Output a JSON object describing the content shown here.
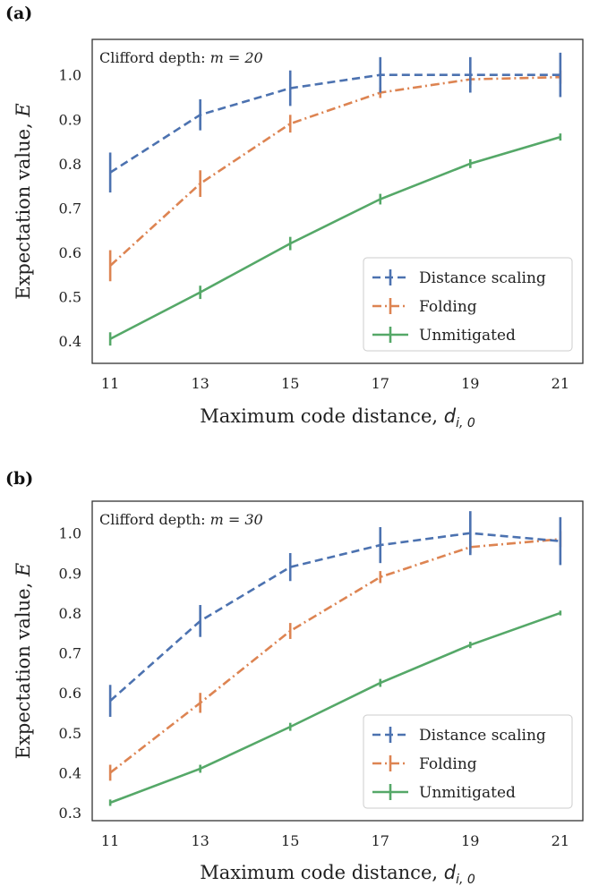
{
  "chart_data": [
    {
      "type": "line",
      "panel_label": "(a)",
      "annotation_text": "Clifford depth: ",
      "annotation_math": "m = 20",
      "xlabel": "Maximum code distance, ",
      "xlabel_math": "d",
      "xlabel_sub": "i, 0",
      "ylabel": "Expectation value, ",
      "ylabel_math": "E",
      "x": [
        11,
        13,
        15,
        17,
        19,
        21
      ],
      "x_tick_labels": [
        "11",
        "13",
        "15",
        "17",
        "19",
        "21"
      ],
      "y_ticks": [
        0.4,
        0.5,
        0.6,
        0.7,
        0.8,
        0.9,
        1.0
      ],
      "y_tick_labels": [
        "0.4",
        "0.5",
        "0.6",
        "0.7",
        "0.8",
        "0.9",
        "1.0"
      ],
      "xlim": [
        10.6,
        21.5
      ],
      "ylim": [
        0.35,
        1.08
      ],
      "legend_position": "lower-right",
      "series": [
        {
          "name": "Distance scaling",
          "color": "#4c72b0",
          "style": "dashed",
          "values": [
            0.78,
            0.91,
            0.97,
            1.0,
            1.0,
            1.0
          ],
          "errors": [
            0.045,
            0.035,
            0.04,
            0.04,
            0.04,
            0.05
          ]
        },
        {
          "name": "Folding",
          "color": "#dd8452",
          "style": "dashdot",
          "values": [
            0.57,
            0.755,
            0.89,
            0.96,
            0.99,
            0.995
          ],
          "errors": [
            0.035,
            0.03,
            0.02,
            0.012,
            0.012,
            0.015
          ]
        },
        {
          "name": "Unmitigated",
          "color": "#55a868",
          "style": "solid",
          "values": [
            0.405,
            0.51,
            0.62,
            0.72,
            0.8,
            0.86
          ],
          "errors": [
            0.015,
            0.015,
            0.015,
            0.012,
            0.01,
            0.008
          ]
        }
      ]
    },
    {
      "type": "line",
      "panel_label": "(b)",
      "annotation_text": "Clifford depth: ",
      "annotation_math": "m = 30",
      "xlabel": "Maximum code distance, ",
      "xlabel_math": "d",
      "xlabel_sub": "i, 0",
      "ylabel": "Expectation value, ",
      "ylabel_math": "E",
      "x": [
        11,
        13,
        15,
        17,
        19,
        21
      ],
      "x_tick_labels": [
        "11",
        "13",
        "15",
        "17",
        "19",
        "21"
      ],
      "y_ticks": [
        0.3,
        0.4,
        0.5,
        0.6,
        0.7,
        0.8,
        0.9,
        1.0
      ],
      "y_tick_labels": [
        "0.3",
        "0.4",
        "0.5",
        "0.6",
        "0.7",
        "0.8",
        "0.9",
        "1.0"
      ],
      "xlim": [
        10.6,
        21.5
      ],
      "ylim": [
        0.28,
        1.08
      ],
      "legend_position": "lower-right",
      "series": [
        {
          "name": "Distance scaling",
          "color": "#4c72b0",
          "style": "dashed",
          "values": [
            0.58,
            0.78,
            0.915,
            0.97,
            1.0,
            0.98
          ],
          "errors": [
            0.04,
            0.04,
            0.035,
            0.045,
            0.055,
            0.06
          ]
        },
        {
          "name": "Folding",
          "color": "#dd8452",
          "style": "dashdot",
          "values": [
            0.4,
            0.575,
            0.755,
            0.89,
            0.965,
            0.985
          ],
          "errors": [
            0.02,
            0.025,
            0.02,
            0.015,
            0.015,
            0.02
          ]
        },
        {
          "name": "Unmitigated",
          "color": "#55a868",
          "style": "solid",
          "values": [
            0.325,
            0.41,
            0.515,
            0.625,
            0.72,
            0.8
          ],
          "errors": [
            0.008,
            0.01,
            0.01,
            0.01,
            0.008,
            0.006
          ]
        }
      ]
    }
  ]
}
